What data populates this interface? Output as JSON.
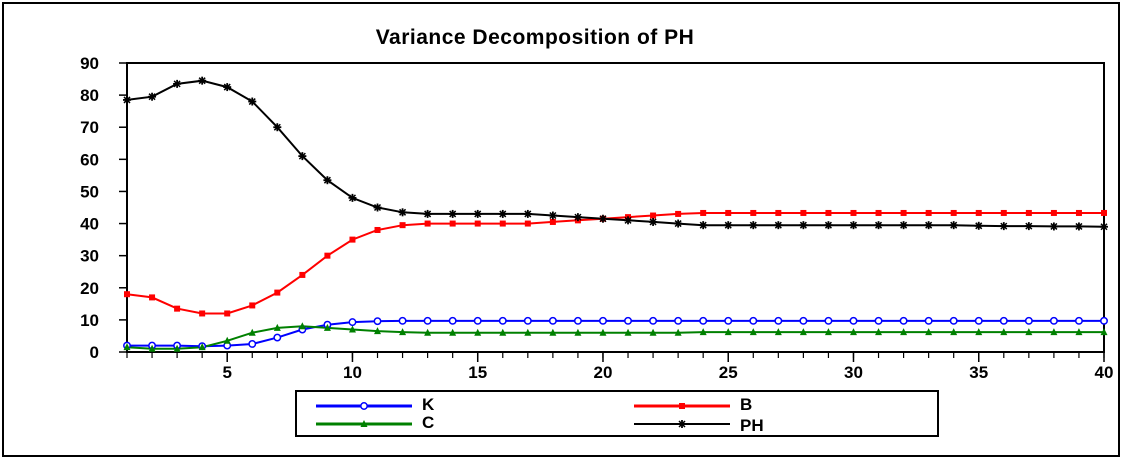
{
  "chart_data": {
    "type": "line",
    "title": "Variance Decomposition of PH",
    "xlabel": "",
    "ylabel": "",
    "xlim": [
      1,
      40
    ],
    "ylim": [
      0,
      90
    ],
    "x_ticks": [
      5,
      10,
      15,
      20,
      25,
      30,
      35,
      40
    ],
    "y_ticks": [
      0,
      10,
      20,
      30,
      40,
      50,
      60,
      70,
      80,
      90
    ],
    "legend_position": "bottom-center",
    "x": [
      1,
      2,
      3,
      4,
      5,
      6,
      7,
      8,
      9,
      10,
      11,
      12,
      13,
      14,
      15,
      16,
      17,
      18,
      19,
      20,
      21,
      22,
      23,
      24,
      25,
      26,
      27,
      28,
      29,
      30,
      31,
      32,
      33,
      34,
      35,
      36,
      37,
      38,
      39,
      40
    ],
    "series": [
      {
        "name": "K",
        "color": "#0000ff",
        "marker": "circle",
        "values": [
          2.0,
          2.0,
          2.0,
          1.8,
          2.0,
          2.5,
          4.5,
          7.0,
          8.5,
          9.3,
          9.6,
          9.7,
          9.7,
          9.7,
          9.7,
          9.7,
          9.7,
          9.7,
          9.7,
          9.7,
          9.7,
          9.7,
          9.7,
          9.7,
          9.7,
          9.7,
          9.7,
          9.7,
          9.7,
          9.7,
          9.7,
          9.7,
          9.7,
          9.7,
          9.7,
          9.7,
          9.7,
          9.7,
          9.7,
          9.7
        ]
      },
      {
        "name": "B",
        "color": "#ff0000",
        "marker": "square",
        "values": [
          18.0,
          17.0,
          13.5,
          12.0,
          12.0,
          14.5,
          18.5,
          24.0,
          30.0,
          35.0,
          38.0,
          39.5,
          40.0,
          40.0,
          40.0,
          40.0,
          40.0,
          40.5,
          41.0,
          41.5,
          42.0,
          42.5,
          43.0,
          43.3,
          43.3,
          43.3,
          43.3,
          43.3,
          43.3,
          43.3,
          43.3,
          43.3,
          43.3,
          43.3,
          43.3,
          43.3,
          43.3,
          43.3,
          43.3,
          43.3
        ]
      },
      {
        "name": "C",
        "color": "#008000",
        "marker": "triangle",
        "values": [
          1.5,
          1.0,
          1.0,
          1.5,
          3.5,
          6.0,
          7.5,
          8.0,
          7.5,
          7.0,
          6.5,
          6.2,
          6.0,
          6.0,
          6.0,
          6.0,
          6.0,
          6.0,
          6.0,
          6.0,
          6.0,
          6.0,
          6.0,
          6.2,
          6.2,
          6.2,
          6.2,
          6.2,
          6.2,
          6.2,
          6.2,
          6.2,
          6.2,
          6.2,
          6.2,
          6.2,
          6.2,
          6.2,
          6.2,
          6.2
        ]
      },
      {
        "name": "PH",
        "color": "#000000",
        "marker": "star",
        "values": [
          78.5,
          79.5,
          83.5,
          84.5,
          82.5,
          78.0,
          70.0,
          61.0,
          53.5,
          48.0,
          45.0,
          43.5,
          43.0,
          43.0,
          43.0,
          43.0,
          43.0,
          42.5,
          42.0,
          41.5,
          41.0,
          40.5,
          40.0,
          39.5,
          39.5,
          39.5,
          39.5,
          39.5,
          39.5,
          39.5,
          39.5,
          39.5,
          39.5,
          39.5,
          39.3,
          39.2,
          39.2,
          39.1,
          39.1,
          39.0
        ]
      }
    ]
  }
}
